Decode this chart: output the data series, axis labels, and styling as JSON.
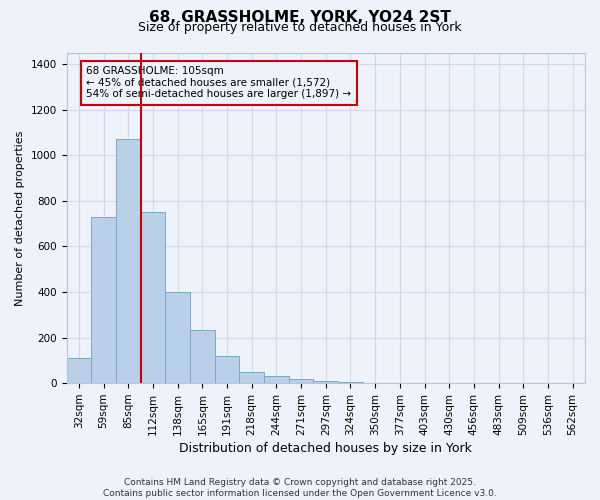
{
  "title1": "68, GRASSHOLME, YORK, YO24 2ST",
  "title2": "Size of property relative to detached houses in York",
  "xlabel": "Distribution of detached houses by size in York",
  "ylabel": "Number of detached properties",
  "categories": [
    "32sqm",
    "59sqm",
    "85sqm",
    "112sqm",
    "138sqm",
    "165sqm",
    "191sqm",
    "218sqm",
    "244sqm",
    "271sqm",
    "297sqm",
    "324sqm",
    "350sqm",
    "377sqm",
    "403sqm",
    "430sqm",
    "456sqm",
    "483sqm",
    "509sqm",
    "536sqm",
    "562sqm"
  ],
  "values": [
    110,
    730,
    1070,
    750,
    400,
    235,
    120,
    50,
    30,
    20,
    10,
    5,
    2,
    1,
    0,
    0,
    0,
    0,
    0,
    0,
    0
  ],
  "bar_color": "#bad0e8",
  "bar_edge_color": "#7aaac8",
  "vline_x": 2.5,
  "vline_color": "#cc0000",
  "annotation_title": "68 GRASSHOLME: 105sqm",
  "annotation_line1": "← 45% of detached houses are smaller (1,572)",
  "annotation_line2": "54% of semi-detached houses are larger (1,897) →",
  "annotation_box_edgecolor": "#cc0000",
  "ylim": [
    0,
    1450
  ],
  "yticks": [
    0,
    200,
    400,
    600,
    800,
    1000,
    1200,
    1400
  ],
  "footer1": "Contains HM Land Registry data © Crown copyright and database right 2025.",
  "footer2": "Contains public sector information licensed under the Open Government Licence v3.0.",
  "bg_color": "#eef2fb",
  "grid_color": "#d0d8ec",
  "title1_fontsize": 11,
  "title2_fontsize": 9,
  "xlabel_fontsize": 9,
  "ylabel_fontsize": 8,
  "tick_fontsize": 7.5,
  "footer_fontsize": 6.5
}
